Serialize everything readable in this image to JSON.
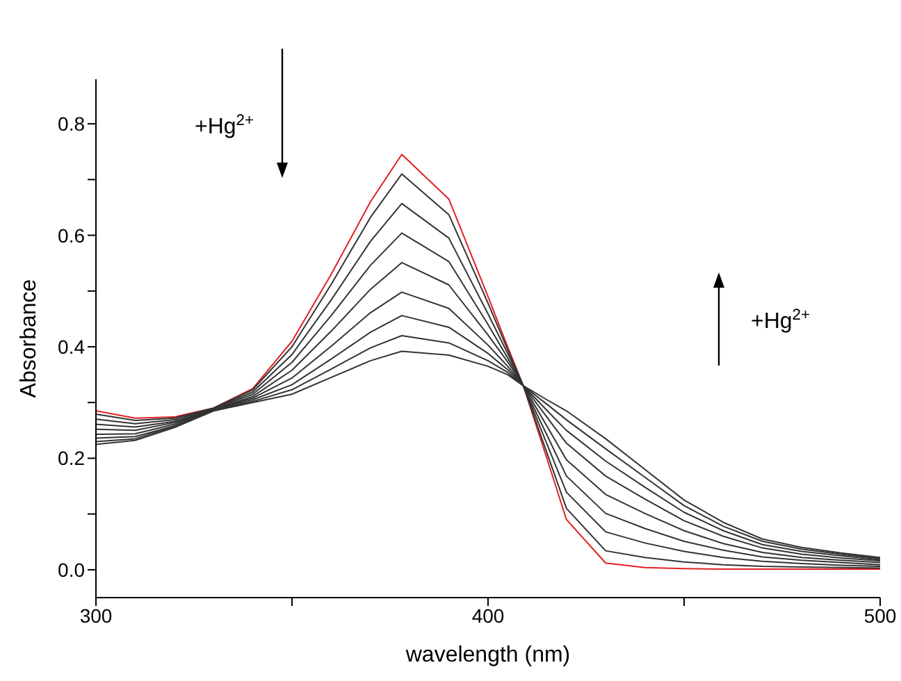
{
  "chart_data": {
    "type": "line",
    "xlabel": "wavelength (nm)",
    "ylabel": "Absorbance",
    "annotations": [
      "+Hg$^{2+}$",
      "+Hg$^{2+}$"
    ],
    "x": [
      300,
      310,
      320,
      330,
      340,
      350,
      360,
      370,
      378,
      390,
      400,
      405,
      409,
      415,
      420,
      430,
      440,
      450,
      460,
      470,
      480,
      490,
      500
    ],
    "xlim": [
      300,
      500
    ],
    "xticks": [
      300,
      {
        "value": 350,
        "label": null
      },
      400,
      {
        "value": 450,
        "label": null
      },
      500
    ],
    "ylim": [
      -0.05,
      0.88
    ],
    "yticks": [
      {
        "value": 0,
        "label": "0.0"
      },
      {
        "value": 0.1,
        "label": null
      },
      {
        "value": 0.2,
        "label": "0.2"
      },
      {
        "value": 0.3,
        "label": null
      },
      {
        "value": 0.4,
        "label": "0.4"
      },
      {
        "value": 0.5,
        "label": null
      },
      {
        "value": 0.6,
        "label": "0.6"
      },
      {
        "value": 0.7,
        "label": null
      },
      {
        "value": 0.8,
        "label": "0.8"
      }
    ],
    "marker": "none",
    "line_style": "solid",
    "series": [
      {
        "color": "#e02020",
        "values": [
          0.285,
          0.272,
          0.274,
          0.29,
          0.325,
          0.41,
          0.53,
          0.66,
          0.745,
          0.665,
          0.49,
          0.4,
          0.33,
          0.2,
          0.09,
          0.012,
          0.004,
          0.002,
          0.001,
          0.001,
          0.001,
          0.001,
          0.001
        ]
      },
      {
        "color": "#333333",
        "values": [
          0.279,
          0.268,
          0.272,
          0.29,
          0.323,
          0.4,
          0.512,
          0.632,
          0.71,
          0.637,
          0.478,
          0.395,
          0.33,
          0.21,
          0.11,
          0.034,
          0.022,
          0.014,
          0.009,
          0.006,
          0.005,
          0.004,
          0.003
        ]
      },
      {
        "color": "#333333",
        "values": [
          0.27,
          0.262,
          0.269,
          0.289,
          0.319,
          0.386,
          0.484,
          0.589,
          0.657,
          0.595,
          0.459,
          0.388,
          0.33,
          0.226,
          0.139,
          0.068,
          0.048,
          0.033,
          0.022,
          0.015,
          0.011,
          0.008,
          0.006
        ]
      },
      {
        "color": "#333333",
        "values": [
          0.261,
          0.256,
          0.266,
          0.288,
          0.315,
          0.372,
          0.456,
          0.546,
          0.604,
          0.553,
          0.44,
          0.38,
          0.33,
          0.242,
          0.168,
          0.101,
          0.074,
          0.051,
          0.035,
          0.023,
          0.017,
          0.013,
          0.009
        ]
      },
      {
        "color": "#333333",
        "values": [
          0.252,
          0.25,
          0.264,
          0.287,
          0.311,
          0.358,
          0.428,
          0.503,
          0.551,
          0.511,
          0.421,
          0.373,
          0.33,
          0.258,
          0.197,
          0.135,
          0.101,
          0.07,
          0.047,
          0.031,
          0.022,
          0.017,
          0.013
        ]
      },
      {
        "color": "#333333",
        "values": [
          0.243,
          0.244,
          0.261,
          0.287,
          0.308,
          0.344,
          0.401,
          0.461,
          0.498,
          0.469,
          0.403,
          0.365,
          0.33,
          0.274,
          0.227,
          0.168,
          0.127,
          0.088,
          0.06,
          0.039,
          0.028,
          0.021,
          0.016
        ]
      },
      {
        "color": "#333333",
        "values": [
          0.236,
          0.239,
          0.258,
          0.286,
          0.305,
          0.332,
          0.378,
          0.426,
          0.456,
          0.435,
          0.388,
          0.359,
          0.33,
          0.286,
          0.25,
          0.195,
          0.148,
          0.103,
          0.07,
          0.045,
          0.033,
          0.025,
          0.018
        ]
      },
      {
        "color": "#333333",
        "values": [
          0.23,
          0.235,
          0.257,
          0.285,
          0.302,
          0.323,
          0.36,
          0.398,
          0.42,
          0.407,
          0.375,
          0.354,
          0.33,
          0.297,
          0.269,
          0.217,
          0.166,
          0.115,
          0.078,
          0.051,
          0.037,
          0.028,
          0.02
        ]
      },
      {
        "color": "#333333",
        "values": [
          0.225,
          0.232,
          0.255,
          0.285,
          0.3,
          0.315,
          0.345,
          0.375,
          0.392,
          0.385,
          0.365,
          0.35,
          0.33,
          0.305,
          0.285,
          0.235,
          0.18,
          0.125,
          0.085,
          0.055,
          0.04,
          0.03,
          0.022
        ]
      }
    ]
  }
}
